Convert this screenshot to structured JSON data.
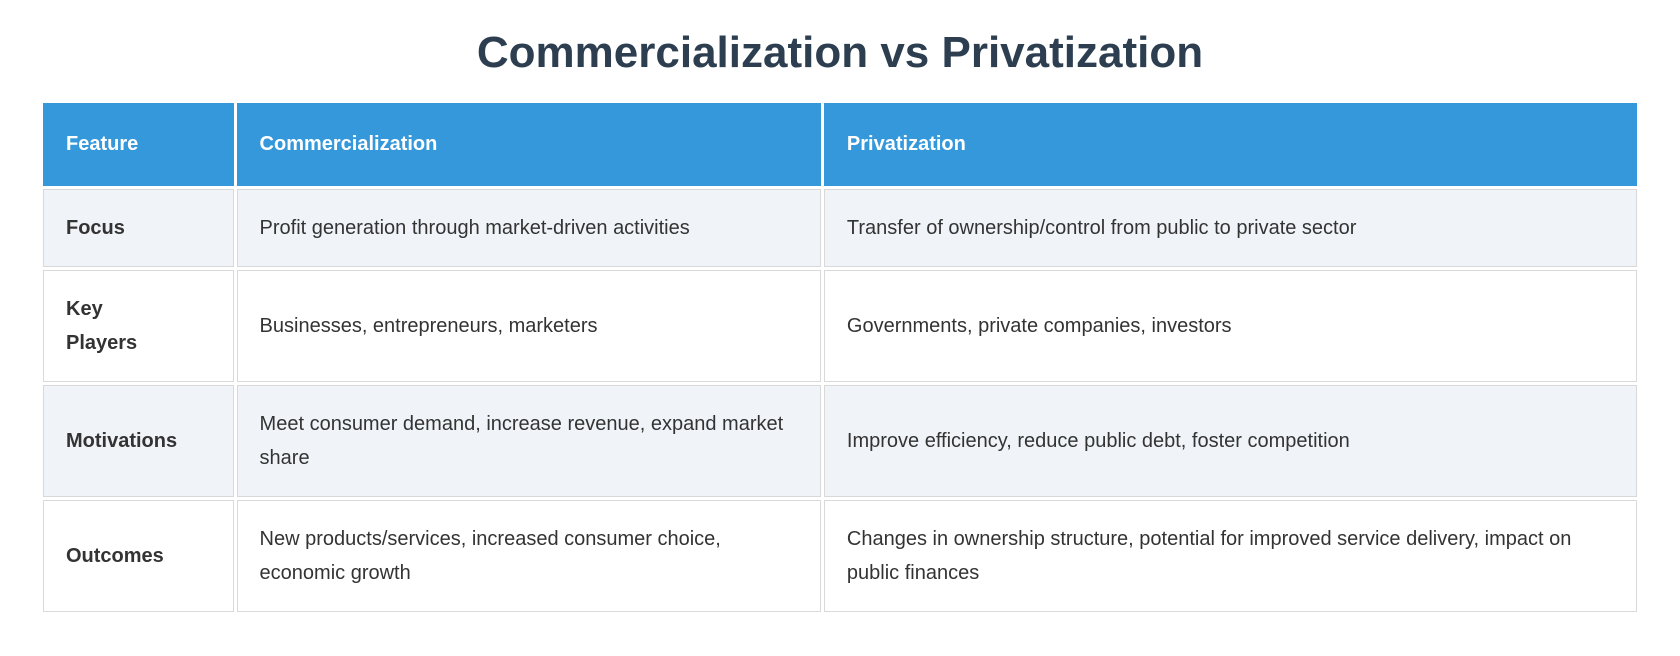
{
  "title": "Commercialization vs Privatization",
  "colors": {
    "header_bg": "#3498db",
    "header_text": "#ffffff",
    "alt_row_bg": "#f0f4f8",
    "row_bg": "#ffffff",
    "border": "#d9d9d9",
    "title_text": "#2c3e50",
    "body_text": "#333333"
  },
  "table": {
    "headers": {
      "feature": "Feature",
      "commercialization": "Commercialization",
      "privatization": "Privatization"
    },
    "rows": [
      {
        "feature": "Focus",
        "commercialization": "Profit generation through market-driven activities",
        "privatization": "Transfer of ownership/control from public to private sector"
      },
      {
        "feature": "Key\nPlayers",
        "commercialization": "Businesses, entrepreneurs, marketers",
        "privatization": "Governments, private companies, investors"
      },
      {
        "feature": "Motivations",
        "commercialization": "Meet consumer demand, increase revenue, expand market share",
        "privatization": "Improve efficiency, reduce public debt, foster competition"
      },
      {
        "feature": "Outcomes",
        "commercialization": "New products/services, increased consumer choice, economic growth",
        "privatization": "Changes in ownership structure, potential for improved service delivery, impact on public finances"
      }
    ]
  },
  "chart_data": {
    "type": "table",
    "title": "Commercialization vs Privatization",
    "columns": [
      "Feature",
      "Commercialization",
      "Privatization"
    ],
    "rows": [
      [
        "Focus",
        "Profit generation through market-driven activities",
        "Transfer of ownership/control from public to private sector"
      ],
      [
        "Key Players",
        "Businesses, entrepreneurs, marketers",
        "Governments, private companies, investors"
      ],
      [
        "Motivations",
        "Meet consumer demand, increase revenue, expand market share",
        "Improve efficiency, reduce public debt, foster competition"
      ],
      [
        "Outcomes",
        "New products/services, increased consumer choice, economic growth",
        "Changes in ownership structure, potential for improved service delivery, impact on public finances"
      ]
    ]
  }
}
